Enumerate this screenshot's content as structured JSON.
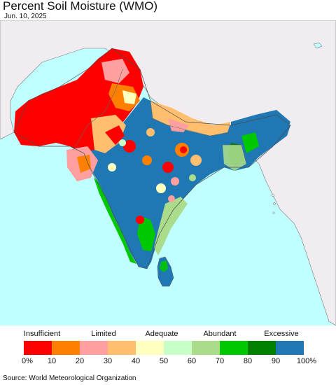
{
  "header": {
    "title": "Percent Soil Moisture (WMO)",
    "date": "Jun. 10, 2025"
  },
  "map": {
    "region": "South Asia",
    "colors": {
      "ocean": "#bfffff",
      "land_outside": "#f0ecf0",
      "border": "#5a5a5a",
      "insufficient": "#ff0000",
      "excessive": "#1f78b4"
    }
  },
  "legend": {
    "categories": [
      "Insufficient",
      "Limited",
      "Adequate",
      "Abundant",
      "Excessive"
    ],
    "colors": [
      "#ff0000",
      "#ff7f00",
      "#ff9f9f",
      "#ffbf6f",
      "#ffffbf",
      "#c8ffc8",
      "#aadc8c",
      "#00c800",
      "#007f00",
      "#1f78b4"
    ],
    "ticks": [
      "0%",
      "10",
      "20",
      "30",
      "40",
      "50",
      "60",
      "70",
      "80",
      "90",
      "100%"
    ]
  },
  "footer": {
    "source": "Source: World Meteorological Organization"
  }
}
